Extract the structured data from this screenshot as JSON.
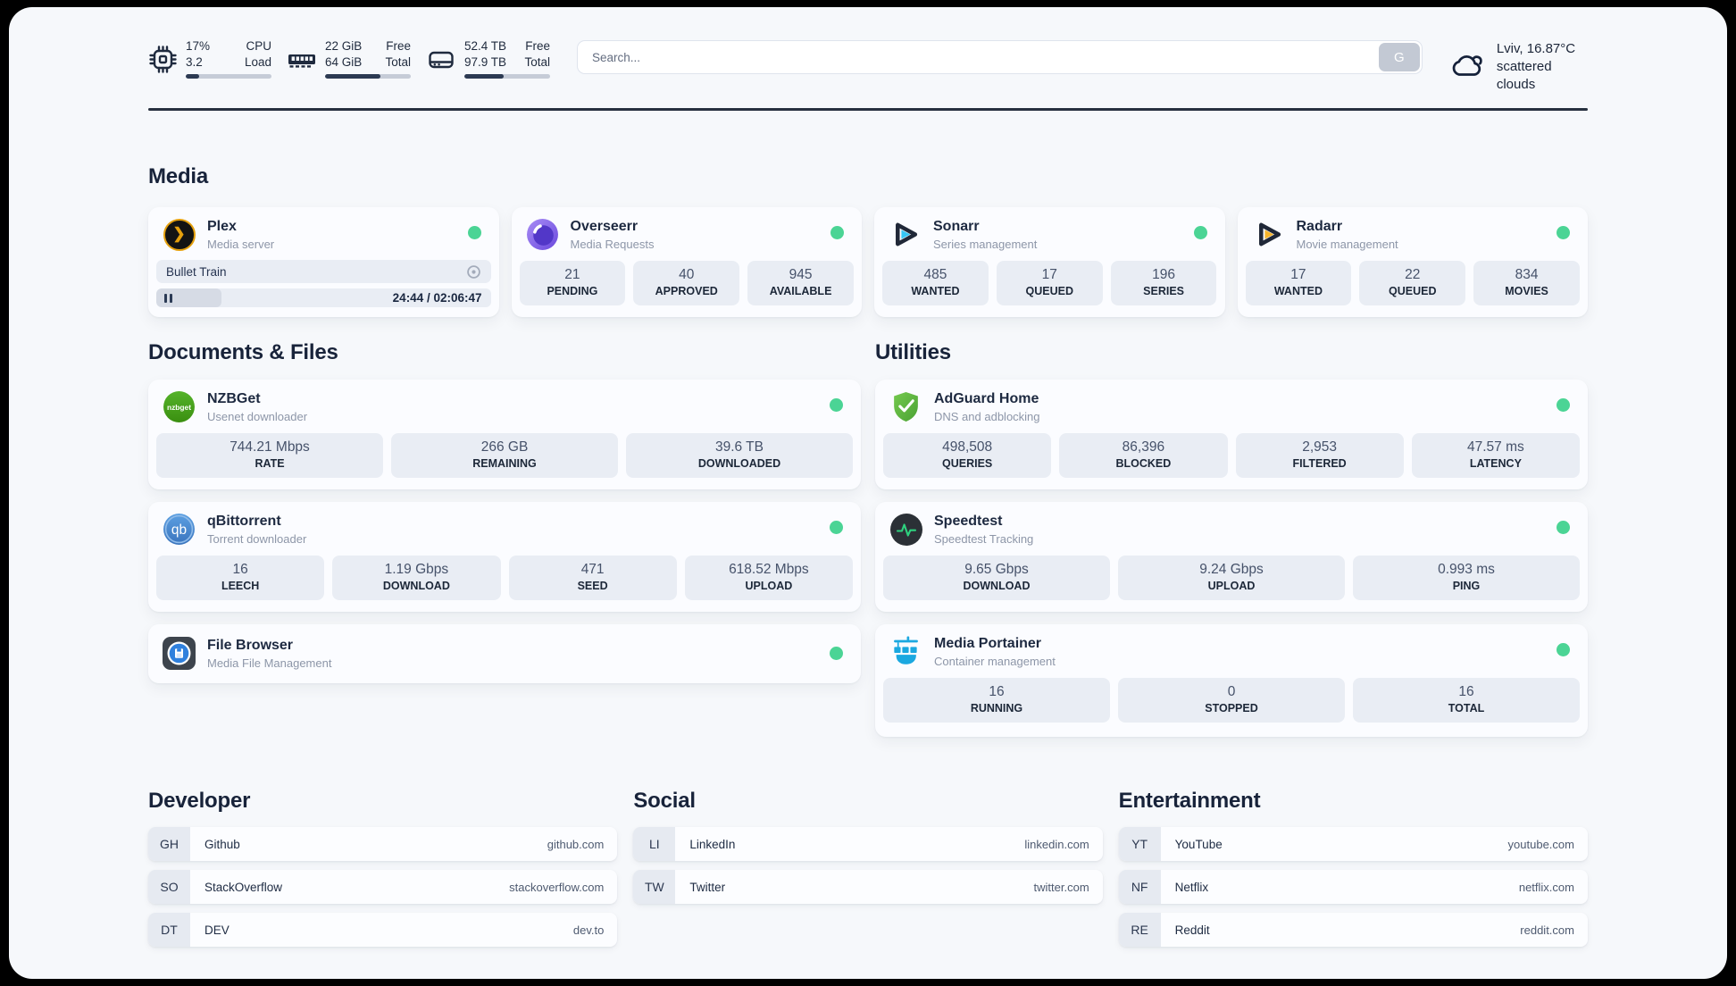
{
  "header": {
    "stats": [
      {
        "icon": "cpu-icon",
        "value1": "17%",
        "value2": "3.2",
        "label1": "CPU",
        "label2": "Load",
        "progress": 16
      },
      {
        "icon": "ram-icon",
        "value1": "22 GiB",
        "value2": "64 GiB",
        "label1": "Free",
        "label2": "Total",
        "progress": 65
      },
      {
        "icon": "disk-icon",
        "value1": "52.4 TB",
        "value2": "97.9 TB",
        "label1": "Free",
        "label2": "Total",
        "progress": 46
      }
    ],
    "search": {
      "placeholder": "Search...",
      "button_label": "G"
    },
    "weather": {
      "line1": "Lviv, 16.87°C",
      "line2": "scattered clouds"
    }
  },
  "media": {
    "title": "Media",
    "apps": [
      {
        "icon": "plex-icon",
        "icon_glyph": "❯",
        "name": "Plex",
        "subtitle": "Media server",
        "now_playing": {
          "title": "Bullet Train",
          "time": "24:44 / 02:06:47",
          "progress_percent": 19.5
        }
      },
      {
        "icon": "overseerr-icon",
        "name": "Overseerr",
        "subtitle": "Media Requests",
        "stats": [
          {
            "value": "21",
            "label": "PENDING"
          },
          {
            "value": "40",
            "label": "APPROVED"
          },
          {
            "value": "945",
            "label": "AVAILABLE"
          }
        ]
      },
      {
        "icon": "sonarr-icon",
        "name": "Sonarr",
        "subtitle": "Series management",
        "stats": [
          {
            "value": "485",
            "label": "WANTED"
          },
          {
            "value": "17",
            "label": "QUEUED"
          },
          {
            "value": "196",
            "label": "SERIES"
          }
        ]
      },
      {
        "icon": "radarr-icon",
        "name": "Radarr",
        "subtitle": "Movie management",
        "stats": [
          {
            "value": "17",
            "label": "WANTED"
          },
          {
            "value": "22",
            "label": "QUEUED"
          },
          {
            "value": "834",
            "label": "MOVIES"
          }
        ]
      }
    ]
  },
  "documents": {
    "title": "Documents & Files",
    "apps": [
      {
        "icon": "nzbget-icon",
        "icon_text": "nzbget",
        "name": "NZBGet",
        "subtitle": "Usenet downloader",
        "stats": [
          {
            "value": "744.21 Mbps",
            "label": "RATE"
          },
          {
            "value": "266 GB",
            "label": "REMAINING"
          },
          {
            "value": "39.6 TB",
            "label": "DOWNLOADED"
          }
        ]
      },
      {
        "icon": "qbittorrent-icon",
        "icon_text": "qb",
        "name": "qBittorrent",
        "subtitle": "Torrent downloader",
        "stats": [
          {
            "value": "16",
            "label": "LEECH"
          },
          {
            "value": "1.19 Gbps",
            "label": "DOWNLOAD"
          },
          {
            "value": "471",
            "label": "SEED"
          },
          {
            "value": "618.52 Mbps",
            "label": "UPLOAD"
          }
        ]
      },
      {
        "icon": "filebrowser-icon",
        "name": "File Browser",
        "subtitle": "Media File Management"
      }
    ]
  },
  "utilities": {
    "title": "Utilities",
    "apps": [
      {
        "icon": "adguard-icon",
        "name": "AdGuard Home",
        "subtitle": "DNS and adblocking",
        "stats": [
          {
            "value": "498,508",
            "label": "QUERIES"
          },
          {
            "value": "86,396",
            "label": "BLOCKED"
          },
          {
            "value": "2,953",
            "label": "FILTERED"
          },
          {
            "value": "47.57 ms",
            "label": "LATENCY"
          }
        ]
      },
      {
        "icon": "speedtest-icon",
        "name": "Speedtest",
        "subtitle": "Speedtest Tracking",
        "stats": [
          {
            "value": "9.65 Gbps",
            "label": "DOWNLOAD"
          },
          {
            "value": "9.24 Gbps",
            "label": "UPLOAD"
          },
          {
            "value": "0.993 ms",
            "label": "PING"
          }
        ]
      },
      {
        "icon": "portainer-icon",
        "name": "Media Portainer",
        "subtitle": "Container management",
        "stats": [
          {
            "value": "16",
            "label": "RUNNING"
          },
          {
            "value": "0",
            "label": "STOPPED"
          },
          {
            "value": "16",
            "label": "TOTAL"
          }
        ]
      }
    ]
  },
  "developer": {
    "title": "Developer",
    "bookmarks": [
      {
        "abbr": "GH",
        "name": "Github",
        "url": "github.com"
      },
      {
        "abbr": "SO",
        "name": "StackOverflow",
        "url": "stackoverflow.com"
      },
      {
        "abbr": "DT",
        "name": "DEV",
        "url": "dev.to"
      }
    ]
  },
  "social": {
    "title": "Social",
    "bookmarks": [
      {
        "abbr": "LI",
        "name": "LinkedIn",
        "url": "linkedin.com"
      },
      {
        "abbr": "TW",
        "name": "Twitter",
        "url": "twitter.com"
      }
    ]
  },
  "entertainment": {
    "title": "Entertainment",
    "bookmarks": [
      {
        "abbr": "YT",
        "name": "YouTube",
        "url": "youtube.com"
      },
      {
        "abbr": "NF",
        "name": "Netflix",
        "url": "netflix.com"
      },
      {
        "abbr": "RE",
        "name": "Reddit",
        "url": "reddit.com"
      }
    ]
  },
  "colors": {
    "status_online": "#4bd495",
    "divider": "#27303f",
    "progress_fill": "#2c3a52",
    "plex_amber": "#e5a00d",
    "sonarr_cyan": "#36c6f4",
    "radarr_gold": "#f7b52c",
    "adguard_green": "#5fb944",
    "qbittorrent_blue": "#4a8fd6",
    "nzbget_green": "#46a117",
    "portainer_blue": "#1ba8e0"
  }
}
